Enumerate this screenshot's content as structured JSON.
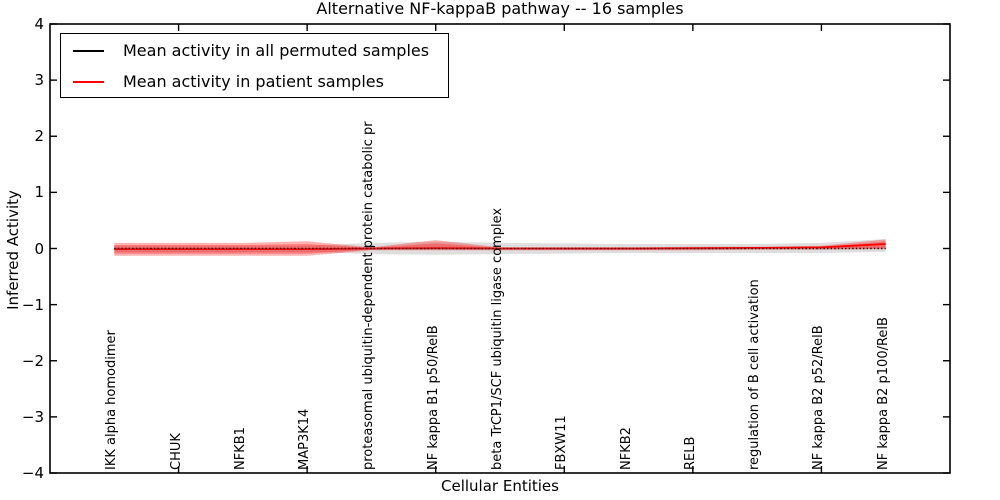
{
  "title": "Alternative NF-kappaB pathway -- 16 samples",
  "xlabel": "Cellular Entities",
  "ylabel": "Inferred Activity",
  "legend": [
    {
      "label": "Mean activity in all permuted samples",
      "color": "#000000"
    },
    {
      "label": "Mean activity in patient samples",
      "color": "#ff0000"
    }
  ],
  "chart_data": {
    "type": "line",
    "title": "Alternative NF-kappaB pathway -- 16 samples",
    "xlabel": "Cellular Entities",
    "ylabel": "Inferred Activity",
    "ylim": [
      -4,
      4
    ],
    "yticks": [
      4,
      3,
      2,
      1,
      0,
      -1,
      -2,
      -3,
      -4
    ],
    "grid": false,
    "legend_position": "upper left",
    "categories": [
      "IKK alpha homodimer",
      "CHUK",
      "NFKB1",
      "MAP3K14",
      "proteasomal ubiquitin-dependent protein catabolic pr",
      "NF kappa B1 p50/RelB",
      "beta TrCP1/SCF ubiquitin ligase complex",
      "FBXW11",
      "NFKB2",
      "RELB",
      "regulation of B cell activation",
      "NF kappa B2 p52/RelB",
      "NF kappa B2 p100/RelB"
    ],
    "xtick_marks_at_indices": [
      1,
      3,
      5,
      7,
      9,
      11
    ],
    "series": [
      {
        "name": "Mean activity in all permuted samples",
        "color": "#000000",
        "style": "dotted",
        "values": [
          0,
          0,
          0,
          0,
          0,
          0,
          0,
          0,
          0,
          0,
          0,
          0,
          0
        ]
      },
      {
        "name": "Mean activity in patient samples",
        "color": "#ff0000",
        "style": "solid",
        "values": [
          -0.01,
          -0.01,
          -0.01,
          -0.01,
          0.0,
          0.005,
          0.0,
          0.0,
          0.0,
          0.005,
          0.01,
          0.02,
          0.08
        ]
      }
    ],
    "bands": [
      {
        "name": "permuted-samples-band",
        "color": "rgba(0,0,0,0.13)",
        "upper": [
          0.05,
          0.05,
          0.05,
          0.05,
          0.1,
          0.12,
          0.1,
          0.09,
          0.08,
          0.08,
          0.08,
          0.1,
          0.17
        ],
        "lower": [
          -0.06,
          -0.06,
          -0.06,
          -0.06,
          -0.1,
          -0.11,
          -0.1,
          -0.09,
          -0.08,
          -0.08,
          -0.08,
          -0.08,
          -0.06
        ]
      },
      {
        "name": "patient-samples-band-outer",
        "color": "rgba(255,0,0,0.30)",
        "upper": [
          0.1,
          0.1,
          0.1,
          0.13,
          0.02,
          0.15,
          0.02,
          0.02,
          0.02,
          0.03,
          0.03,
          0.05,
          0.16
        ],
        "lower": [
          -0.13,
          -0.13,
          -0.13,
          -0.13,
          -0.03,
          -0.03,
          -0.03,
          -0.03,
          -0.03,
          -0.03,
          -0.02,
          -0.02,
          -0.01
        ]
      },
      {
        "name": "patient-samples-band-inner",
        "color": "rgba(255,0,0,0.30)",
        "upper": [
          0.06,
          0.06,
          0.06,
          0.08,
          0.01,
          0.09,
          0.01,
          0.01,
          0.01,
          0.02,
          0.02,
          0.03,
          0.12
        ],
        "lower": [
          -0.09,
          -0.09,
          -0.09,
          -0.09,
          -0.02,
          -0.02,
          -0.02,
          -0.02,
          -0.02,
          -0.02,
          -0.01,
          -0.01,
          0.0
        ]
      }
    ]
  }
}
